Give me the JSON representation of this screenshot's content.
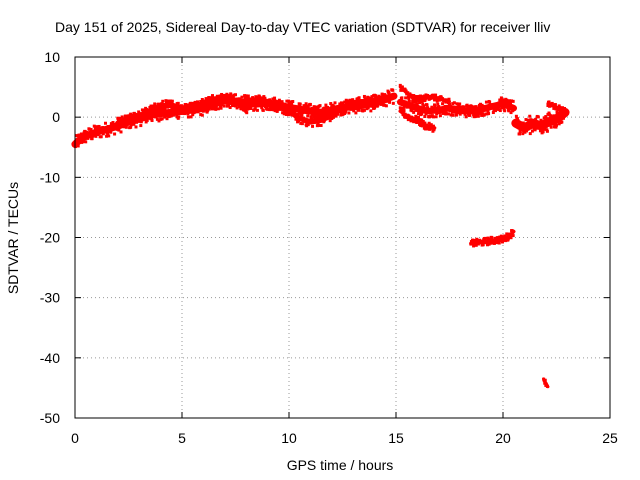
{
  "chart_data": {
    "type": "scatter",
    "title": "Day 151 of 2025, Sidereal Day-to-day VTEC variation (SDTVAR) for receiver lliv",
    "xlabel": "GPS time / hours",
    "ylabel": "SDTVAR / TECUs",
    "xlim": [
      0,
      25
    ],
    "ylim": [
      -50,
      10
    ],
    "xticks": [
      0,
      5,
      10,
      15,
      20,
      25
    ],
    "yticks": [
      10,
      0,
      -10,
      -20,
      -30,
      -40,
      -50
    ],
    "grid": true,
    "grid_style": "dotted",
    "series": [
      {
        "name": "SDTVAR",
        "color": "#ff0000",
        "bands": [
          {
            "x": [
              0.0,
              0.3,
              0.6,
              1.0,
              1.5,
              2.0,
              2.5,
              3.0,
              3.5,
              4.0,
              4.5,
              5.0,
              5.5,
              6.0,
              6.5,
              7.0,
              7.5,
              8.0,
              8.5,
              9.0,
              9.5,
              10.0,
              10.5,
              11.0,
              11.5,
              12.0,
              12.5,
              13.0,
              13.5,
              14.0,
              14.5,
              14.9
            ],
            "y": [
              -4.5,
              -3.5,
              -3.0,
              -2.5,
              -2.0,
              -1.5,
              -0.8,
              -0.3,
              0.3,
              0.6,
              0.8,
              1.0,
              1.2,
              1.5,
              2.2,
              2.8,
              2.6,
              2.4,
              2.2,
              2.3,
              2.1,
              1.6,
              1.3,
              1.0,
              0.8,
              1.2,
              1.6,
              1.8,
              2.0,
              2.3,
              3.0,
              3.5
            ],
            "spread": 1.2
          },
          {
            "x": [
              2.0,
              2.5,
              3.0,
              3.5,
              4.0,
              4.5,
              5.0,
              5.5,
              6.0,
              6.5,
              7.0,
              7.5,
              8.0,
              8.5,
              9.0,
              9.5,
              10.0,
              10.5,
              11.0,
              11.5,
              12.0,
              12.5,
              13.0,
              13.5,
              14.0,
              14.5
            ],
            "y": [
              -1.0,
              -0.5,
              0.2,
              1.0,
              1.8,
              2.0,
              1.5,
              1.5,
              2.3,
              3.0,
              3.2,
              2.5,
              1.5,
              2.8,
              2.6,
              1.8,
              1.0,
              -0.2,
              -0.8,
              -0.5,
              0.3,
              1.6,
              2.3,
              2.6,
              2.8,
              2.8
            ],
            "spread": 0.9
          },
          {
            "x": [
              15.2,
              15.6,
              16.0,
              16.5,
              17.0,
              17.5,
              18.0,
              18.5,
              19.0,
              19.5,
              20.0,
              20.5
            ],
            "y": [
              2.5,
              2.0,
              1.5,
              1.0,
              1.2,
              1.5,
              1.2,
              1.0,
              1.3,
              1.8,
              2.2,
              1.5
            ],
            "spread": 1.1
          },
          {
            "x": [
              15.2,
              15.6,
              16.0,
              16.4,
              16.8
            ],
            "y": [
              1.0,
              0.0,
              -0.5,
              -1.5,
              -1.8
            ],
            "spread": 0.6
          },
          {
            "x": [
              15.2,
              15.5,
              15.8,
              16.2,
              16.6,
              17.0,
              17.5
            ],
            "y": [
              5.0,
              4.0,
              3.2,
              3.0,
              3.5,
              3.0,
              2.6
            ],
            "spread": 0.5
          },
          {
            "x": [
              20.6,
              21.0,
              21.4,
              21.8,
              22.1,
              22.4,
              22.7,
              22.9
            ],
            "y": [
              -1.0,
              -1.8,
              -1.0,
              -1.5,
              -0.8,
              -0.5,
              0.2,
              0.8
            ],
            "spread": 1.5
          },
          {
            "x": [
              22.1,
              22.4,
              22.7,
              22.9
            ],
            "y": [
              2.3,
              1.8,
              1.4,
              1.0
            ],
            "spread": 0.4
          },
          {
            "x": [
              18.5,
              19.0,
              19.5,
              20.0,
              20.3,
              20.5
            ],
            "y": [
              -21.0,
              -20.8,
              -20.5,
              -20.3,
              -19.7,
              -19.0
            ],
            "spread": 0.6
          },
          {
            "x": [
              21.9,
              22.0,
              22.1
            ],
            "y": [
              -43.5,
              -44.2,
              -44.8
            ],
            "spread": 0.4
          }
        ]
      }
    ]
  }
}
